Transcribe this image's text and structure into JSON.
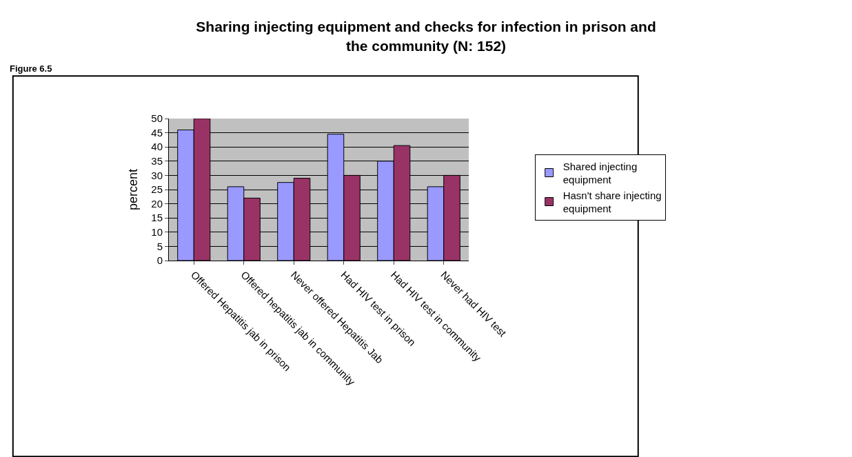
{
  "chart_data": {
    "type": "bar",
    "title": "Sharing injecting equipment and checks for infection in prison and\nthe community (N: 152)",
    "ylabel": "percent",
    "categories": [
      "Offered Hepatitis jab in prison",
      "Offered hepatitis jab in community",
      "Never offered Hepatitis Jab",
      "Had HIV test in prison",
      "Had HIV test in community",
      "Never had HIV test"
    ],
    "series": [
      {
        "name": "Shared injecting\nequipment",
        "color": "#9999ff",
        "values": [
          46,
          26,
          27.5,
          44.5,
          35,
          26
        ]
      },
      {
        "name": "Hasn't share injecting\nequipment",
        "color": "#993366",
        "values": [
          50,
          22,
          29,
          30,
          40.5,
          30
        ]
      }
    ],
    "ylim": [
      0,
      50
    ],
    "yticks": [
      0,
      5,
      10,
      15,
      20,
      25,
      30,
      35,
      40,
      45,
      50
    ],
    "grid": "y",
    "legend": "right",
    "annotations": [
      "Figure 6.5"
    ]
  }
}
